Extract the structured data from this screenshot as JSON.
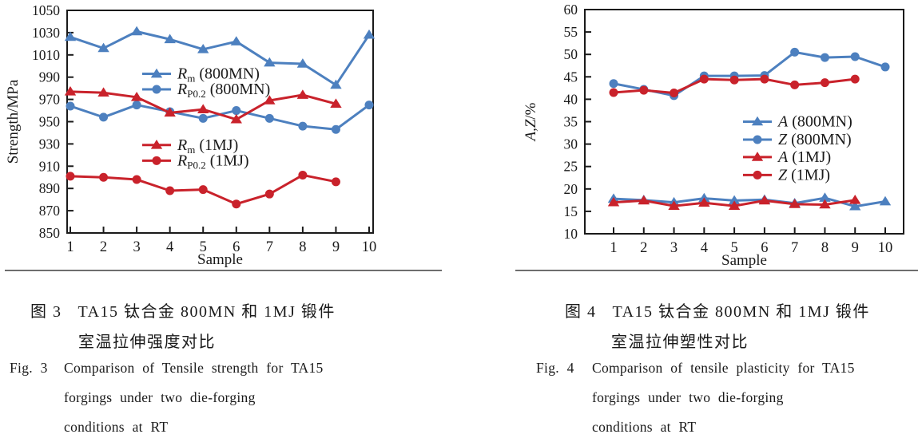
{
  "page": {
    "type": "journal-figure-panel",
    "background": "#ffffff"
  },
  "colors": {
    "series_blue": "#4d80bf",
    "series_red": "#c9222b",
    "axis": "#1a1a1a",
    "separator_rule": "#6e6e6e"
  },
  "chart_data": [
    {
      "id": "tensile-strength",
      "type": "line",
      "xlabel": "Sample",
      "ylabel": "Strength/MPa",
      "ylabel_parts": [
        {
          "t": "Strength/MPa",
          "italic": false
        }
      ],
      "x": [
        1,
        2,
        3,
        4,
        5,
        6,
        7,
        8,
        9,
        10
      ],
      "xlim": [
        1,
        10
      ],
      "ylim": [
        850,
        1050
      ],
      "ytick_step": 20,
      "yticks": [
        850,
        870,
        890,
        910,
        930,
        950,
        970,
        990,
        1010,
        1030,
        1050
      ],
      "grid": false,
      "legend_position": "inside, two stacked groups upper-middle / middle",
      "series": [
        {
          "name": "Rm (800MN)",
          "label": {
            "sym": "R",
            "sub": "m",
            "cond": "(800MN)"
          },
          "color": "#4d80bf",
          "marker": "triangle",
          "values": [
            1026,
            1016,
            1031,
            1024,
            1015,
            1022,
            1003,
            1002,
            983,
            1028
          ]
        },
        {
          "name": "RP0.2 (800MN)",
          "label": {
            "sym": "R",
            "sub": "P0.2",
            "cond": "(800MN)"
          },
          "color": "#4d80bf",
          "marker": "circle",
          "values": [
            964,
            954,
            965,
            959,
            953,
            960,
            953,
            946,
            943,
            965
          ]
        },
        {
          "name": "Rm (1MJ)",
          "label": {
            "sym": "R",
            "sub": "m",
            "cond": "(1MJ)"
          },
          "color": "#c9222b",
          "marker": "triangle",
          "values": [
            977,
            976,
            972,
            958,
            961,
            952,
            969,
            974,
            966
          ]
        },
        {
          "name": "RP0.2 (1MJ)",
          "label": {
            "sym": "R",
            "sub": "P0.2",
            "cond": "(1MJ)"
          },
          "color": "#c9222b",
          "marker": "circle",
          "values": [
            901,
            900,
            898,
            888,
            889,
            876,
            885,
            902,
            896
          ]
        }
      ],
      "legend_entry_y_values": [
        993,
        979,
        929,
        915
      ]
    },
    {
      "id": "tensile-plasticity",
      "type": "line",
      "xlabel": "Sample",
      "ylabel": "A,Z/%",
      "ylabel_parts": [
        {
          "t": "A,Z",
          "italic": true
        },
        {
          "t": "/%",
          "italic": false
        }
      ],
      "x": [
        1,
        2,
        3,
        4,
        5,
        6,
        7,
        8,
        9,
        10
      ],
      "xlim": [
        1,
        10
      ],
      "ylim": [
        10,
        60
      ],
      "ytick_step": 5,
      "yticks": [
        10,
        15,
        20,
        25,
        30,
        35,
        40,
        45,
        50,
        55,
        60
      ],
      "grid": false,
      "legend_position": "inside, middle-right single column",
      "series": [
        {
          "name": "A (800MN)",
          "label": {
            "sym": "A",
            "sub": "",
            "cond": "(800MN)"
          },
          "color": "#4d80bf",
          "marker": "triangle",
          "values": [
            17.8,
            17.5,
            17.0,
            17.9,
            17.4,
            17.6,
            16.8,
            18.0,
            16.1,
            17.2
          ]
        },
        {
          "name": "Z (800MN)",
          "label": {
            "sym": "Z",
            "sub": "",
            "cond": "(800MN)"
          },
          "color": "#4d80bf",
          "marker": "circle",
          "values": [
            43.5,
            42.2,
            40.8,
            45.2,
            45.2,
            45.3,
            50.5,
            49.3,
            49.5,
            47.2
          ]
        },
        {
          "name": "A (1MJ)",
          "label": {
            "sym": "A",
            "sub": "",
            "cond": "(1MJ)"
          },
          "color": "#c9222b",
          "marker": "triangle",
          "values": [
            17.0,
            17.4,
            16.2,
            16.9,
            16.2,
            17.4,
            16.6,
            16.5,
            17.5
          ]
        },
        {
          "name": "Z (1MJ)",
          "label": {
            "sym": "Z",
            "sub": "",
            "cond": "(1MJ)"
          },
          "color": "#c9222b",
          "marker": "circle",
          "values": [
            41.5,
            42.0,
            41.4,
            44.5,
            44.3,
            44.5,
            43.2,
            43.7,
            44.5
          ]
        }
      ],
      "legend_entry_y_values": [
        35.0,
        31.0,
        27.1,
        23.1
      ]
    }
  ],
  "captions": {
    "fig3": {
      "cn_label": "图 3",
      "cn_title": "TA15 钛合金 800MN 和 1MJ 锻件",
      "cn_line2": "室温拉伸强度对比",
      "en_label": "Fig. 3",
      "en_line1": "Comparison of Tensile strength for TA15",
      "en_line2": "forgings under two die-forging",
      "en_line3": "conditions at RT"
    },
    "fig4": {
      "cn_label": "图 4",
      "cn_title": "TA15 钛合金 800MN 和 1MJ 锻件",
      "cn_line2": "室温拉伸塑性对比",
      "en_label": "Fig. 4",
      "en_line1": "Comparison of tensile plasticity for TA15",
      "en_line2": "forgings under two die-forging",
      "en_line3": "conditions at RT"
    }
  }
}
